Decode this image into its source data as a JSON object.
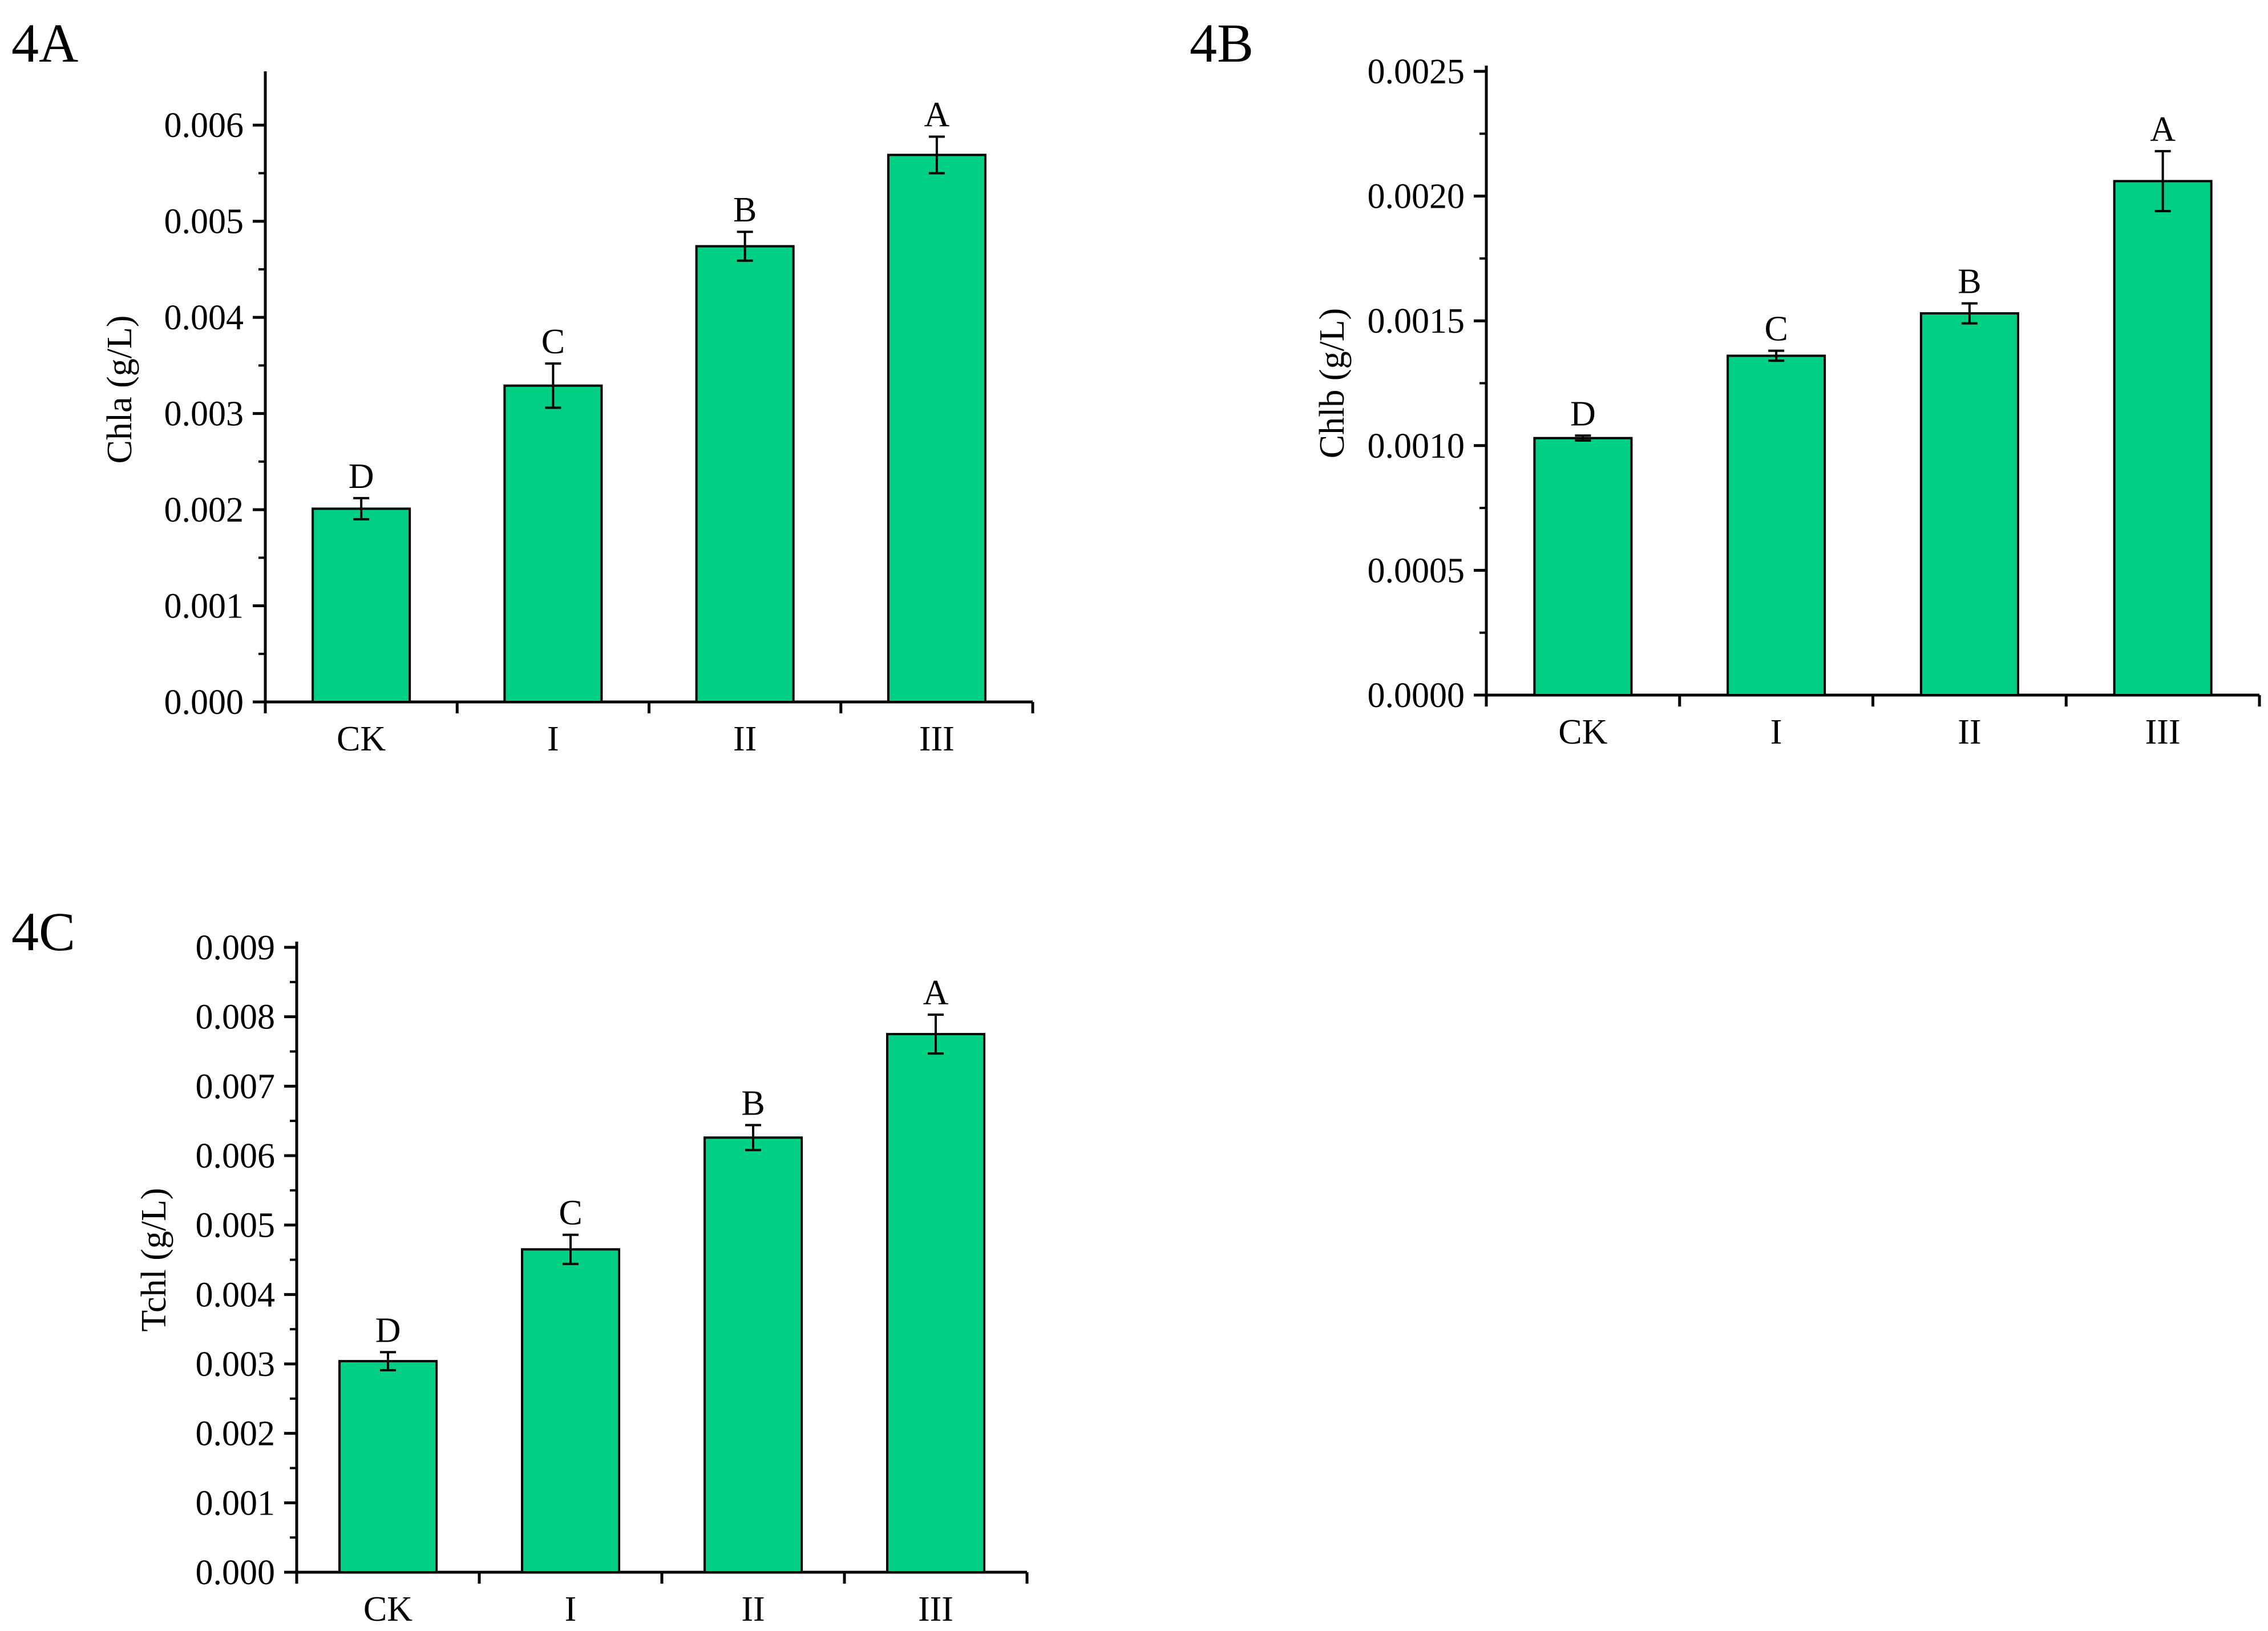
{
  "colors": {
    "bar": "#00d084",
    "outline": "#000000",
    "background": "#ffffff"
  },
  "chart_data": [
    {
      "panel": "4A",
      "type": "bar",
      "categories": [
        "CK",
        "I",
        "II",
        "III"
      ],
      "values": [
        0.00201,
        0.00329,
        0.00474,
        0.00569
      ],
      "errors": [
        0.00011,
        0.00023,
        0.00015,
        0.00019
      ],
      "letters": [
        "D",
        "C",
        "B",
        "A"
      ],
      "ylabel": "Chla (g/L)",
      "xlabel": "",
      "ylim": [
        0,
        0.0065
      ],
      "yticks": [
        "0.000",
        "0.001",
        "0.002",
        "0.003",
        "0.004",
        "0.005",
        "0.006"
      ],
      "ytick_values": [
        0,
        0.001,
        0.002,
        0.003,
        0.004,
        0.005,
        0.006
      ]
    },
    {
      "panel": "4B",
      "type": "bar",
      "categories": [
        "CK",
        "I",
        "II",
        "III"
      ],
      "values": [
        0.00103,
        0.00136,
        0.00153,
        0.00206
      ],
      "errors": [
        1e-05,
        2e-05,
        4e-05,
        0.00012
      ],
      "letters": [
        "D",
        "C",
        "B",
        "A"
      ],
      "ylabel": "Chlb (g/L)",
      "xlabel": "",
      "ylim": [
        0,
        0.0025
      ],
      "yticks": [
        "0.0000",
        "0.0005",
        "0.0010",
        "0.0015",
        "0.0020",
        "0.0025"
      ],
      "ytick_values": [
        0,
        0.0005,
        0.001,
        0.0015,
        0.002,
        0.0025
      ]
    },
    {
      "panel": "4C",
      "type": "bar",
      "categories": [
        "CK",
        "I",
        "II",
        "III"
      ],
      "values": [
        0.00304,
        0.00465,
        0.00626,
        0.00775
      ],
      "errors": [
        0.00013,
        0.00021,
        0.00018,
        0.00028
      ],
      "letters": [
        "D",
        "C",
        "B",
        "A"
      ],
      "ylabel": "Tchl (g/L)",
      "xlabel": "",
      "ylim": [
        0,
        0.009
      ],
      "yticks": [
        "0.000",
        "0.001",
        "0.002",
        "0.003",
        "0.004",
        "0.005",
        "0.006",
        "0.007",
        "0.008",
        "0.009"
      ],
      "ytick_values": [
        0,
        0.001,
        0.002,
        0.003,
        0.004,
        0.005,
        0.006,
        0.007,
        0.008,
        0.009
      ]
    }
  ]
}
